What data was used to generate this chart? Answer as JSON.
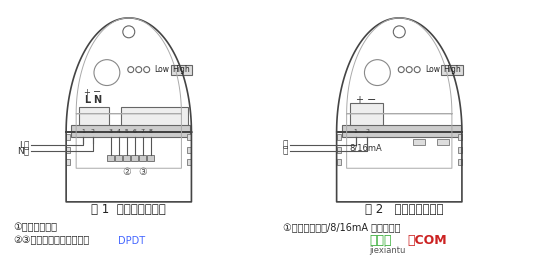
{
  "bg_color": "#ffffff",
  "fig_width": 5.38,
  "fig_height": 2.56,
  "dpi": 100,
  "caption1": "图 1  继电器输出方式",
  "caption2": "图 2   二线制输出方式",
  "note1a": "①：电源输入端",
  "note1b": "②③：继电器信号输出端，",
  "note1b_colored": "DPDT",
  "note2a": "①：电源输入端/8/16mA 信号输出端",
  "watermark1": "接线图",
  "watermark2": "．COM",
  "watermark3": "jiexiantu"
}
